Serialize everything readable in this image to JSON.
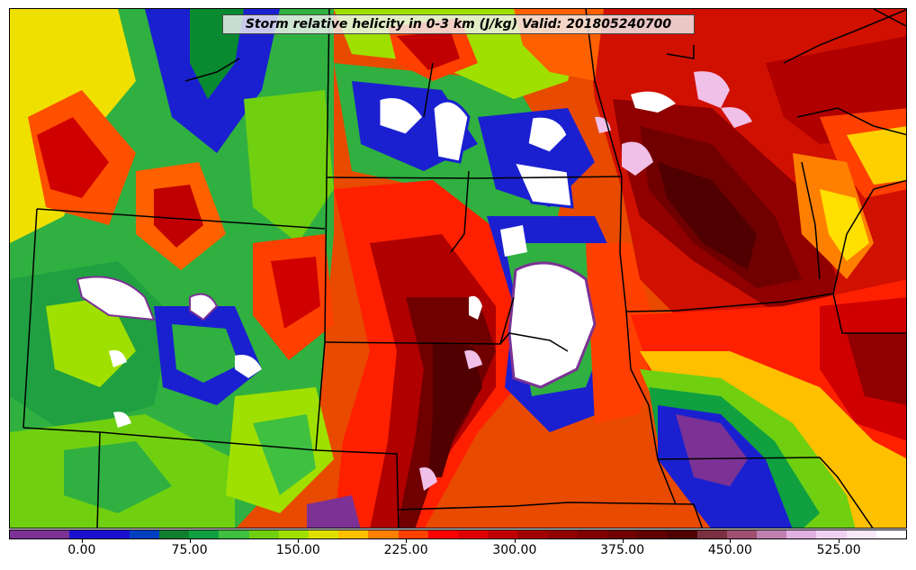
{
  "title": "Storm relative helicity in 0-3 km (J/kg) Valid: 201805240700",
  "colorbar": {
    "colors": [
      "#7b3294",
      "#7b3294",
      "#1a10d0",
      "#1a10d0",
      "#0040c0",
      "#108030",
      "#10a040",
      "#40c040",
      "#70d010",
      "#a0e000",
      "#e0e000",
      "#ffc000",
      "#ff8000",
      "#ff4000",
      "#ff0000",
      "#e00000",
      "#c00000",
      "#a00000",
      "#900000",
      "#800000",
      "#700000",
      "#600000",
      "#500000",
      "#7a3040",
      "#a05070",
      "#c080b0",
      "#e0b0e0",
      "#f0d0f0",
      "#f8e8f8",
      "#ffffff"
    ],
    "ticks": [
      {
        "label": "0.00",
        "frac": 0.081
      },
      {
        "label": "75.00",
        "frac": 0.201
      },
      {
        "label": "150.00",
        "frac": 0.322
      },
      {
        "label": "225.00",
        "frac": 0.442
      },
      {
        "label": "300.00",
        "frac": 0.563
      },
      {
        "label": "375.00",
        "frac": 0.683
      },
      {
        "label": "450.00",
        "frac": 0.803
      },
      {
        "label": "525.00",
        "frac": 0.924
      }
    ]
  }
}
